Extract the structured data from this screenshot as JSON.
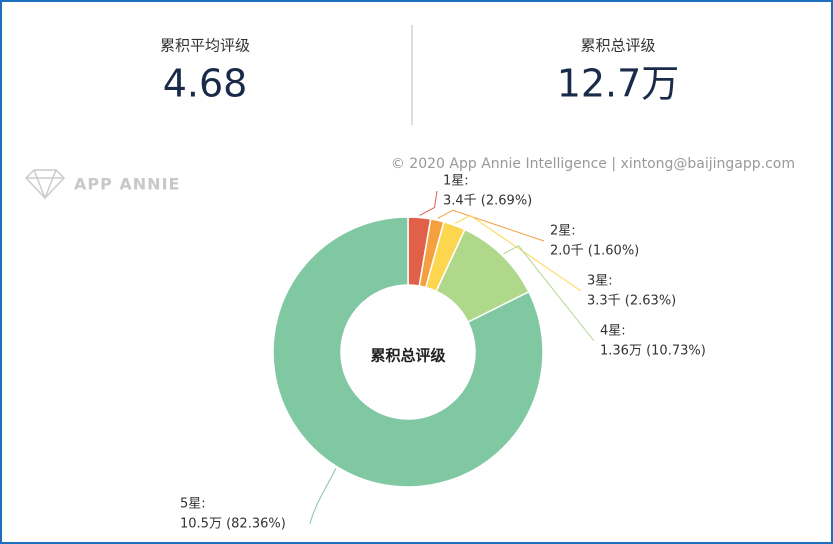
{
  "stats": [
    {
      "title": "累积平均评级",
      "value": 4.68
    },
    {
      "title": "累积总评级",
      "value": "12.7万"
    }
  ],
  "watermark": "© 2020 App Annie Intelligence | xintong@baijingapp.com",
  "logo": "APP ANNIE",
  "chart_data": {
    "type": "donut",
    "center_label": "累积总评级",
    "categories": [
      "1星:",
      "2星:",
      "3星:",
      "4星:",
      "5星:"
    ],
    "values": [
      2.69,
      1.6,
      2.63,
      10.73,
      82.36
    ],
    "value_labels": [
      "3.4千 (2.69%)",
      "2.0千 (1.60%)",
      "3.3千 (2.63%)",
      "1.36万 (10.73%)",
      "10.5万 (82.36%)"
    ],
    "colors": [
      "#e0604a",
      "#f4a040",
      "#fdd64f",
      "#b0d88a",
      "#7fc8a2"
    ]
  }
}
